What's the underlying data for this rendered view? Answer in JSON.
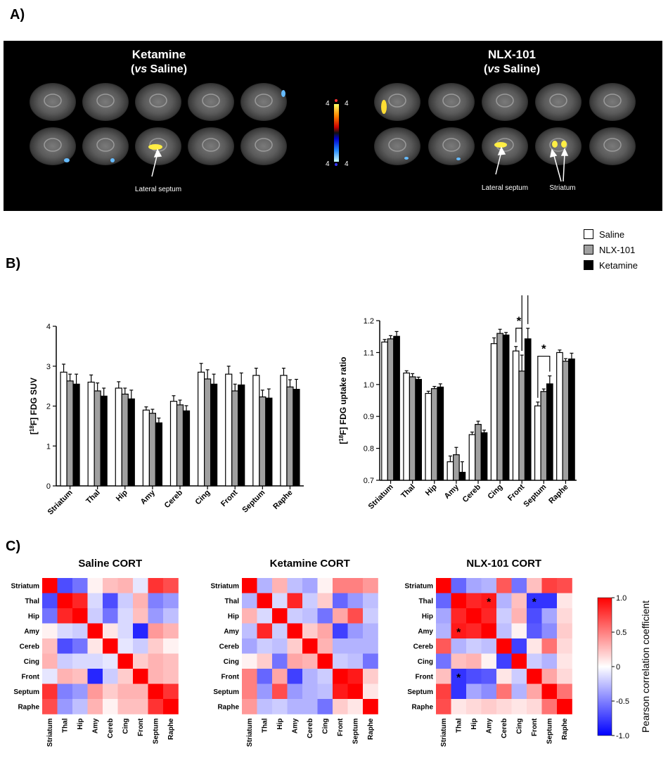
{
  "labels": {
    "A": "A)",
    "B": "B)",
    "C": "C)"
  },
  "panelA": {
    "left_title_line1": "Ketamine",
    "left_title_vs": "vs",
    "left_title_rest": " Saline)",
    "right_title_line1": "NLX-101",
    "right_title_vs": "vs",
    "right_title_rest": " Saline)",
    "scale_top_left": "4",
    "scale_top_right": "4",
    "scale_bottom_left": "4",
    "scale_bottom_right": "4",
    "annot_left": "Lateral septum",
    "annot_right_1": "Lateral septum",
    "annot_right_2": "Striatum"
  },
  "legendB": {
    "items": [
      {
        "name": "Saline",
        "color": "#ffffff"
      },
      {
        "name": "NLX-101",
        "color": "#a0a0a0"
      },
      {
        "name": "Ketamine",
        "color": "#000000"
      }
    ]
  },
  "chart_data": [
    {
      "type": "bar",
      "ylabel": "[18F] FDG SUV",
      "ylim": [
        0,
        4
      ],
      "yticks": [
        "0",
        "1",
        "2",
        "3",
        "4"
      ],
      "categories": [
        "Striatum",
        "Thal",
        "Hip",
        "Amy",
        "Cereb",
        "Cing",
        "Front",
        "Septum",
        "Raphe"
      ],
      "series": [
        {
          "name": "Saline",
          "values": [
            2.85,
            2.6,
            2.45,
            1.9,
            2.12,
            2.85,
            2.8,
            2.77,
            2.77
          ],
          "errors": [
            0.2,
            0.18,
            0.16,
            0.08,
            0.14,
            0.22,
            0.2,
            0.18,
            0.18
          ]
        },
        {
          "name": "NLX-101",
          "values": [
            2.63,
            2.38,
            2.3,
            1.82,
            2.03,
            2.68,
            2.38,
            2.23,
            2.48
          ],
          "errors": [
            0.17,
            0.2,
            0.15,
            0.1,
            0.12,
            0.23,
            0.17,
            0.17,
            0.18
          ]
        },
        {
          "name": "Ketamine",
          "values": [
            2.55,
            2.25,
            2.18,
            1.58,
            1.88,
            2.55,
            2.53,
            2.2,
            2.42
          ],
          "errors": [
            0.25,
            0.2,
            0.22,
            0.12,
            0.13,
            0.25,
            0.3,
            0.23,
            0.25
          ]
        }
      ]
    },
    {
      "type": "bar",
      "ylabel": "[18F] FDG uptake ratio",
      "ylim": [
        0.7,
        1.2
      ],
      "yticks": [
        "0.7",
        "0.8",
        "0.9",
        "1.0",
        "1.1",
        "1.2"
      ],
      "categories": [
        "Striatum",
        "Thal",
        "Hip",
        "Amy",
        "Cereb",
        "Cing",
        "Front",
        "Septum",
        "Raphe"
      ],
      "series": [
        {
          "name": "Saline",
          "values": [
            1.133,
            1.036,
            0.972,
            0.758,
            0.843,
            1.128,
            1.105,
            0.933,
            1.1
          ],
          "errors": [
            0.008,
            0.007,
            0.007,
            0.018,
            0.008,
            0.018,
            0.014,
            0.012,
            0.008
          ]
        },
        {
          "name": "NLX-101",
          "values": [
            1.143,
            1.024,
            0.987,
            0.78,
            0.875,
            1.16,
            1.042,
            0.978,
            1.073
          ],
          "errors": [
            0.01,
            0.01,
            0.007,
            0.023,
            0.01,
            0.013,
            0.05,
            0.008,
            0.008
          ]
        },
        {
          "name": "Ketamine",
          "values": [
            1.151,
            1.016,
            0.992,
            0.725,
            0.849,
            1.155,
            1.143,
            1.002,
            1.08
          ],
          "errors": [
            0.015,
            0.007,
            0.01,
            0.033,
            0.008,
            0.008,
            0.033,
            0.025,
            0.018
          ]
        }
      ],
      "annotations": [
        {
          "text": "*",
          "category": "Front",
          "between": [
            "Saline",
            "NLX-101"
          ]
        },
        {
          "text": "***",
          "category": "Front",
          "between": [
            "NLX-101",
            "Ketamine"
          ]
        },
        {
          "text": "*",
          "category": "Septum",
          "between": [
            "Saline",
            "Ketamine"
          ]
        }
      ]
    },
    {
      "type": "heatmap",
      "title": "Saline CORT",
      "labels": [
        "Striatum",
        "Thal",
        "Hip",
        "Amy",
        "Cereb",
        "Cing",
        "Front",
        "Septum",
        "Raphe"
      ],
      "values": [
        [
          1,
          -0.7,
          -0.55,
          0.05,
          0.25,
          0.3,
          -0.1,
          0.8,
          0.7
        ],
        [
          -0.7,
          1,
          0.85,
          -0.15,
          -0.7,
          -0.2,
          0.3,
          -0.5,
          -0.4
        ],
        [
          -0.55,
          0.85,
          1,
          -0.2,
          -0.55,
          -0.15,
          0.25,
          -0.4,
          -0.25
        ],
        [
          0.05,
          -0.15,
          -0.2,
          1,
          0.1,
          -0.15,
          -0.85,
          0.4,
          0.3
        ],
        [
          0.25,
          -0.7,
          -0.55,
          0.1,
          1,
          -0.1,
          -0.2,
          0.2,
          0.05
        ],
        [
          0.3,
          -0.2,
          -0.15,
          -0.15,
          -0.1,
          1,
          0.2,
          0.3,
          0.25
        ],
        [
          -0.1,
          0.3,
          0.25,
          -0.85,
          -0.2,
          0.2,
          1,
          0.3,
          0.25
        ],
        [
          0.8,
          -0.5,
          -0.4,
          0.4,
          0.2,
          0.3,
          0.3,
          1,
          0.8
        ],
        [
          0.7,
          -0.4,
          -0.25,
          0.3,
          0.05,
          0.25,
          0.25,
          0.8,
          1
        ]
      ],
      "stars": []
    },
    {
      "type": "heatmap",
      "title": "Ketamine CORT",
      "labels": [
        "Striatum",
        "Thal",
        "Hip",
        "Amy",
        "Cereb",
        "Cing",
        "Front",
        "Septum",
        "Raphe"
      ],
      "values": [
        [
          1,
          -0.3,
          0.3,
          -0.25,
          -0.35,
          0.05,
          0.5,
          0.5,
          0.4
        ],
        [
          -0.3,
          1,
          -0.15,
          0.85,
          -0.2,
          0.2,
          -0.6,
          -0.4,
          -0.25
        ],
        [
          0.3,
          -0.15,
          1,
          -0.2,
          -0.25,
          -0.55,
          0.35,
          0.7,
          -0.2
        ],
        [
          -0.25,
          0.85,
          -0.2,
          1,
          0.2,
          0.35,
          -0.75,
          -0.4,
          -0.3
        ],
        [
          -0.35,
          -0.2,
          -0.25,
          0.2,
          1,
          0.3,
          -0.3,
          -0.3,
          -0.3
        ],
        [
          0.05,
          0.2,
          -0.55,
          0.35,
          0.3,
          1,
          -0.2,
          -0.25,
          -0.55
        ],
        [
          0.5,
          -0.6,
          0.35,
          -0.75,
          -0.3,
          -0.2,
          1,
          0.9,
          0.2
        ],
        [
          0.5,
          -0.4,
          0.7,
          -0.4,
          -0.3,
          -0.25,
          0.9,
          1,
          0.1
        ],
        [
          0.4,
          -0.25,
          -0.2,
          -0.3,
          -0.3,
          -0.55,
          0.2,
          0.1,
          1
        ]
      ],
      "stars": []
    },
    {
      "type": "heatmap",
      "title": "NLX-101 CORT",
      "labels": [
        "Striatum",
        "Thal",
        "Hip",
        "Amy",
        "Cereb",
        "Cing",
        "Front",
        "Septum",
        "Raphe"
      ],
      "values": [
        [
          1,
          -0.6,
          -0.35,
          -0.3,
          0.65,
          -0.55,
          0.25,
          0.75,
          0.7
        ],
        [
          -0.6,
          1,
          0.85,
          0.9,
          -0.3,
          0.25,
          -0.8,
          -0.8,
          0.1
        ],
        [
          -0.35,
          0.85,
          1,
          0.85,
          -0.2,
          0.3,
          -0.7,
          -0.35,
          0.15
        ],
        [
          -0.3,
          0.9,
          0.85,
          1,
          -0.25,
          0.05,
          -0.65,
          -0.45,
          0.2
        ],
        [
          0.65,
          -0.3,
          -0.2,
          -0.25,
          1,
          -0.75,
          0.1,
          0.55,
          0.15
        ],
        [
          -0.55,
          0.25,
          0.3,
          0.05,
          -0.75,
          1,
          -0.2,
          -0.3,
          0.1
        ],
        [
          0.25,
          -0.8,
          -0.7,
          -0.65,
          0.1,
          -0.2,
          1,
          0.35,
          0.15
        ],
        [
          0.75,
          -0.8,
          -0.35,
          -0.45,
          0.55,
          -0.3,
          0.35,
          1,
          0.55
        ],
        [
          0.7,
          0.1,
          0.15,
          0.2,
          0.15,
          0.1,
          0.15,
          0.55,
          1
        ]
      ],
      "stars": [
        [
          1,
          3
        ],
        [
          1,
          6
        ],
        [
          3,
          1
        ],
        [
          6,
          1
        ]
      ]
    }
  ],
  "colorbar": {
    "label": "Pearson correlation coefficient",
    "ticks": [
      "1.0",
      "0.5",
      "0",
      "-0.5",
      "-1.0"
    ]
  }
}
